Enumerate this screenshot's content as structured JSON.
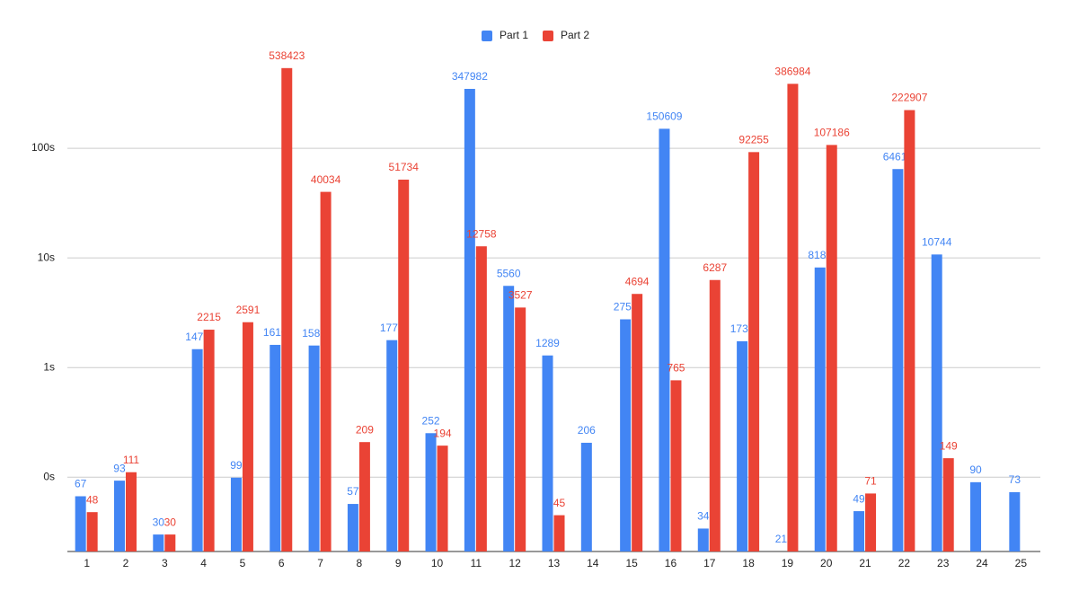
{
  "chart_data": {
    "type": "bar",
    "log_scale": true,
    "grid": true,
    "legend": "top",
    "categories": [
      1,
      2,
      3,
      4,
      5,
      6,
      7,
      8,
      9,
      10,
      11,
      12,
      13,
      14,
      15,
      16,
      17,
      18,
      19,
      20,
      21,
      22,
      23,
      24,
      25
    ],
    "series": [
      {
        "name": "Part 1",
        "color": "#4285f4",
        "values": [
          67,
          93,
          30,
          1471,
          99,
          1610,
          1588,
          57,
          1778,
          252,
          347982,
          5560,
          1289,
          206,
          2753,
          150609,
          34,
          1737,
          21,
          8180,
          49,
          64613,
          10744,
          90,
          73
        ]
      },
      {
        "name": "Part 2",
        "color": "#ea4335",
        "values": [
          48,
          111,
          30,
          2215,
          2591,
          538423,
          40034,
          209,
          51734,
          194,
          12758,
          3527,
          45,
          null,
          4694,
          765,
          6287,
          92255,
          386984,
          107186,
          71,
          222907,
          149,
          null,
          null
        ]
      }
    ],
    "ylim": [
      21,
      1000000
    ],
    "yticks": [
      {
        "value": 100,
        "label": "0s"
      },
      {
        "value": 1000,
        "label": "1s"
      },
      {
        "value": 10000,
        "label": "10s"
      },
      {
        "value": 100000,
        "label": "100s"
      }
    ]
  }
}
